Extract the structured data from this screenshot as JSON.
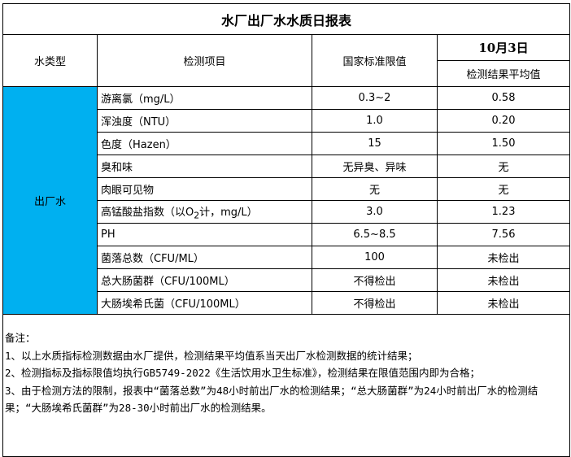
{
  "title": "水厂出厂水水质日报表",
  "headers": {
    "water_type": "水类型",
    "item": "检测项目",
    "limit": "国家标准限值",
    "date": "10月3日",
    "avg": "检测结果平均值"
  },
  "water_type_value": "出厂水",
  "highlight_color": "#00b0f0",
  "rows": [
    {
      "item": "游离氯（mg/L）",
      "limit": "0.3~2",
      "value": "0.58"
    },
    {
      "item": "浑浊度（NTU）",
      "limit": "1.0",
      "value": "0.20"
    },
    {
      "item": "色度（Hazen）",
      "limit": "15",
      "value": "1.50"
    },
    {
      "item": "臭和味",
      "limit": "无异臭、异味",
      "value": "无"
    },
    {
      "item": "肉眼可见物",
      "limit": "无",
      "value": "无"
    },
    {
      "item_pre": "高锰酸盐指数（以O",
      "item_sub": "2",
      "item_post": "计，mg/L）",
      "limit": "3.0",
      "value": "1.23"
    },
    {
      "item": "PH",
      "limit": "6.5~8.5",
      "value": "7.56"
    },
    {
      "item": "菌落总数（CFU/ML）",
      "limit": "100",
      "value": "未检出"
    },
    {
      "item": "总大肠菌群（CFU/100ML）",
      "limit": "不得检出",
      "value": "未检出"
    },
    {
      "item": "大肠埃希氏菌（CFU/100ML）",
      "limit": "不得检出",
      "value": "未检出"
    }
  ],
  "notes": {
    "heading": "备注：",
    "lines": [
      "1、以上水质指标检测数据由水厂提供，检测结果平均值系当天出厂水检测数据的统计结果；",
      "2、检测指标及指标限值均执行GB5749-2022《生活饮用水卫生标准》，检测结果在限值范围内即为合格；",
      "3、由于检测方法的限制，报表中“菌落总数”为48小时前出厂水的检测结果；“总大肠菌群”为24小时前出厂水的检测结果；“大肠埃希氏菌群”为28-30小时前出厂水的检测结果。"
    ]
  }
}
